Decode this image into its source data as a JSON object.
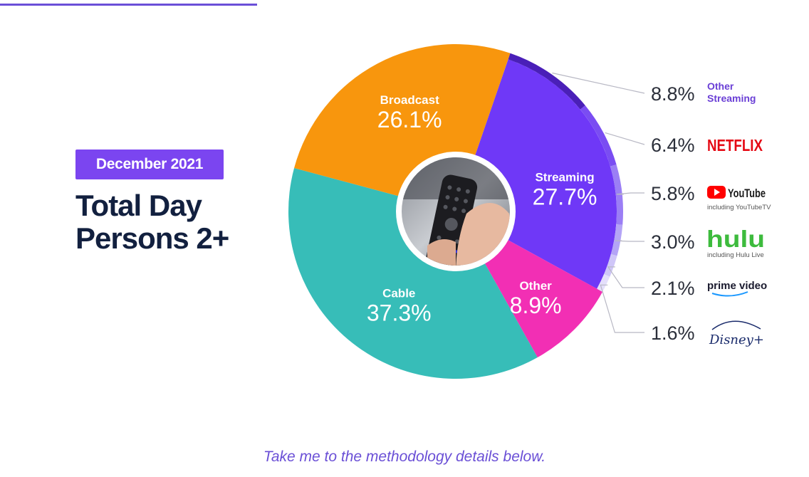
{
  "header": {
    "badge": "December 2021",
    "title_line1": "Total Day",
    "title_line2": "Persons 2+"
  },
  "chart_data": {
    "type": "pie",
    "title": "Total Day Persons 2+",
    "period": "December 2021",
    "slices": [
      {
        "label": "Streaming",
        "value": 27.7,
        "display": "27.7%",
        "color": "#6f38f7"
      },
      {
        "label": "Other",
        "value": 8.9,
        "display": "8.9%",
        "color": "#f22fb4"
      },
      {
        "label": "Cable",
        "value": 37.3,
        "display": "37.3%",
        "color": "#37bdb8"
      },
      {
        "label": "Broadcast",
        "value": 26.1,
        "display": "26.1%",
        "color": "#f8960d"
      }
    ],
    "streaming_breakdown": [
      {
        "name": "Other Streaming",
        "value": 8.8,
        "display": "8.8%",
        "color": "#4a1fb8",
        "sub": ""
      },
      {
        "name": "NETFLIX",
        "value": 6.4,
        "display": "6.4%",
        "color": "#7a4df2",
        "sub": ""
      },
      {
        "name": "YouTube",
        "value": 5.8,
        "display": "5.8%",
        "color": "#9b7ef5",
        "sub": "including YouTubeTV"
      },
      {
        "name": "hulu",
        "value": 3.0,
        "display": "3.0%",
        "color": "#b4a4f6",
        "sub": "including Hulu Live"
      },
      {
        "name": "prime video",
        "value": 2.1,
        "display": "2.1%",
        "color": "#cfc6f8",
        "sub": ""
      },
      {
        "name": "Disney+",
        "value": 1.6,
        "display": "1.6%",
        "color": "#e4dffb",
        "sub": ""
      }
    ]
  },
  "colors": {
    "accent": "#7b45f0",
    "headline": "#12203f",
    "netflix": "#e50914",
    "youtube": "#ff0000",
    "hulu": "#3dbb3d",
    "prime": "#1a98ff"
  },
  "footer": {
    "link": "Take me to the methodology details below."
  }
}
